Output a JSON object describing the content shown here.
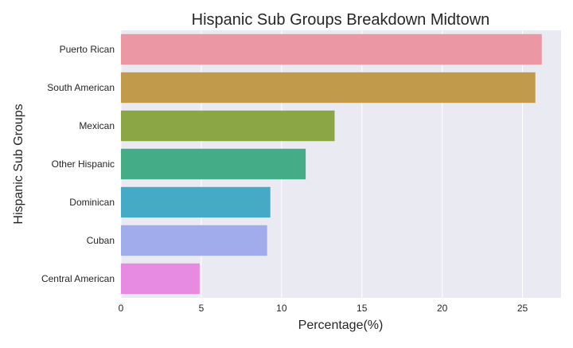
{
  "chart_data": {
    "type": "bar",
    "orientation": "horizontal",
    "title": "Hispanic Sub Groups Breakdown Midtown",
    "xlabel": "Percentage(%)",
    "ylabel": "Hispanic Sub Groups",
    "categories": [
      "Puerto Rican",
      "South American",
      "Mexican",
      "Other Hispanic",
      "Dominican",
      "Cuban",
      "Central American"
    ],
    "values": [
      26.2,
      25.8,
      13.3,
      11.5,
      9.3,
      9.1,
      4.9
    ],
    "colors": [
      "#ec98a4",
      "#c29a4b",
      "#8ba644",
      "#44ad87",
      "#44aac6",
      "#a1aced",
      "#e78be2"
    ],
    "xlim": [
      0,
      27.4
    ],
    "xticks": [
      0,
      5,
      10,
      15,
      20,
      25
    ],
    "grid": true,
    "background": "#eaeaf2"
  }
}
